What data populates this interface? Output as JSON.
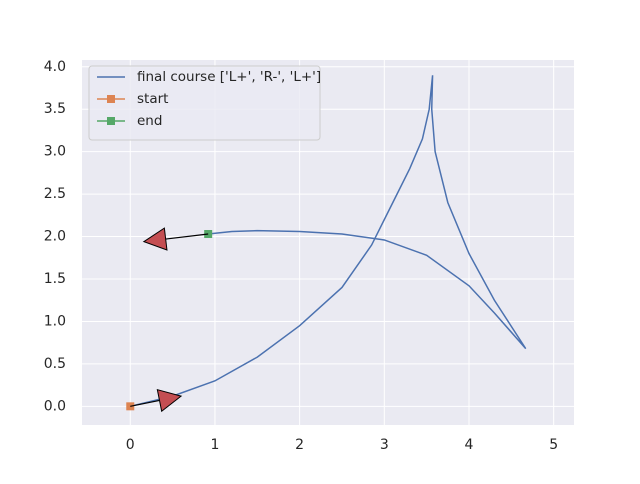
{
  "chart_data": {
    "type": "line",
    "xlim": [
      -0.57,
      5.24
    ],
    "ylim": [
      -0.22,
      4.08
    ],
    "xticks": [
      0,
      1,
      2,
      3,
      4,
      5
    ],
    "yticks": [
      {
        "value": 0,
        "label": "0.0"
      },
      {
        "value": 0.5,
        "label": "0.5"
      },
      {
        "value": 1,
        "label": "1.0"
      },
      {
        "value": 1.5,
        "label": "1.5"
      },
      {
        "value": 2,
        "label": "2.0"
      },
      {
        "value": 2.5,
        "label": "2.5"
      },
      {
        "value": 3,
        "label": "3.0"
      },
      {
        "value": 3.5,
        "label": "3.5"
      },
      {
        "value": 4,
        "label": "4.0"
      }
    ],
    "grid": true,
    "legend": "upper left",
    "series": [
      {
        "name": "final course ['L+', 'R-', 'L+']",
        "color": "#4c72b0",
        "marker": "none",
        "x": [
          0,
          0.5,
          1,
          1.5,
          2,
          2.5,
          2.85,
          3.1,
          3.3,
          3.45,
          3.53,
          3.57,
          3.56,
          3.6,
          3.75,
          4.0,
          4.3,
          4.67,
          4.3,
          4.0,
          3.5,
          3.0,
          2.5,
          2.0,
          1.5,
          1.2,
          0.92
        ],
        "values": [
          0,
          0.12,
          0.3,
          0.58,
          0.95,
          1.4,
          1.9,
          2.4,
          2.8,
          3.15,
          3.5,
          3.9,
          3.5,
          3.0,
          2.4,
          1.8,
          1.25,
          0.68,
          1.1,
          1.42,
          1.78,
          1.96,
          2.03,
          2.06,
          2.07,
          2.06,
          2.03
        ]
      },
      {
        "name": "start",
        "color": "#dd8452",
        "marker": "square",
        "x": [
          0
        ],
        "values": [
          0
        ]
      },
      {
        "name": "end",
        "color": "#55a868",
        "marker": "square",
        "x": [
          0.92
        ],
        "values": [
          2.03
        ]
      }
    ],
    "arrows": [
      {
        "x": 0,
        "y": 0,
        "dx": 0.6,
        "dy": 0.12,
        "color": "#c44e52"
      },
      {
        "x": 0.92,
        "y": 2.03,
        "dx": -0.76,
        "dy": -0.09,
        "color": "#c44e52"
      }
    ]
  }
}
